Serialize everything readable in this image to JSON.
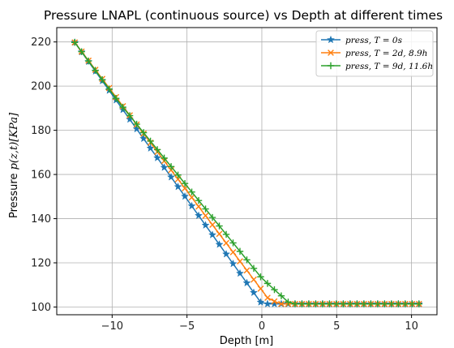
{
  "chart_data": {
    "type": "line",
    "title": "Pressure LNAPL (continuous source) vs Depth at different times",
    "xlabel": "Depth [m]",
    "ylabel": "Pressure p(z,t)[KPa]",
    "xlim": [
      -13.7,
      11.7
    ],
    "ylim": [
      96.5,
      226.5
    ],
    "xticks": [
      -10,
      -5,
      0,
      5,
      10
    ],
    "xtick_labels": [
      "−10",
      "−5",
      "0",
      "5",
      "10"
    ],
    "yticks": [
      100,
      120,
      140,
      160,
      180,
      200,
      220
    ],
    "ytick_labels": [
      "100",
      "120",
      "140",
      "160",
      "180",
      "200",
      "220"
    ],
    "grid": true,
    "legend_position": "top-right",
    "series": [
      {
        "name": "press, T = 0s",
        "color": "#1f77b4",
        "marker": "star",
        "x": [
          -12.5,
          0,
          10.5
        ],
        "y": [
          219.8,
          101.4,
          101.4
        ]
      },
      {
        "name": "press, T = 2d, 8.9h",
        "color": "#ff7f0e",
        "marker": "x",
        "x": [
          -12.5,
          0.4,
          1.2,
          10.5
        ],
        "y": [
          219.8,
          104.0,
          101.4,
          101.4
        ]
      },
      {
        "name": "press, T = 9d, 11.6h",
        "color": "#2ca02c",
        "marker": "plus",
        "x": [
          -12.5,
          -9.5,
          0,
          1.9,
          10.5
        ],
        "y": [
          219.8,
          192.3,
          113.0,
          101.4,
          101.4
        ]
      }
    ]
  }
}
